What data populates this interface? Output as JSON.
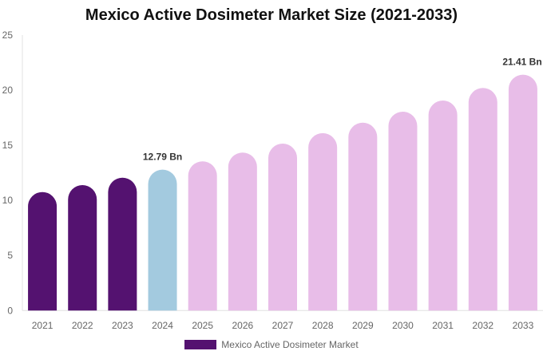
{
  "chart_data": {
    "type": "bar",
    "title": "Mexico Active Dosimeter Market Size (2021-2033)",
    "categories": [
      "2021",
      "2022",
      "2023",
      "2024",
      "2025",
      "2026",
      "2027",
      "2028",
      "2029",
      "2030",
      "2031",
      "2032",
      "2033"
    ],
    "series": [
      {
        "name": "Mexico Active Dosimeter Market",
        "values": [
          10.76,
          11.39,
          12.06,
          12.79,
          13.54,
          14.34,
          15.15,
          16.1,
          17.05,
          18.05,
          19.06,
          20.2,
          21.41
        ]
      }
    ],
    "data_labels": [
      {
        "index": 3,
        "text": "12.79 Bn"
      },
      {
        "index": 12,
        "text": "21.41 Bn"
      }
    ],
    "bar_colors": [
      "#541270",
      "#541270",
      "#541270",
      "#a3cadf",
      "#e8bde8",
      "#e8bde8",
      "#e8bde8",
      "#e8bde8",
      "#e8bde8",
      "#e8bde8",
      "#e8bde8",
      "#e8bde8",
      "#e8bde8"
    ],
    "legend_color": "#541270",
    "ylim": [
      0,
      25
    ],
    "yticks": [
      0,
      5,
      10,
      15,
      20,
      25
    ],
    "grid": false,
    "legend_position": "bottom",
    "xlabel": "",
    "ylabel": ""
  }
}
